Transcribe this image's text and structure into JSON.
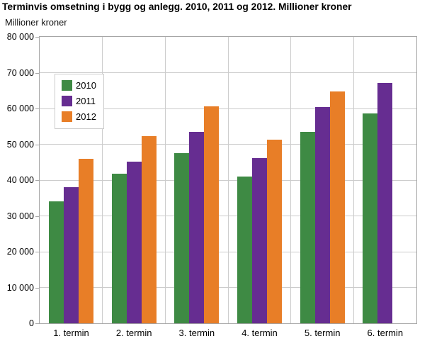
{
  "title": "Terminvis omsetning i bygg og anlegg. 2010, 2011 og 2012. Millioner kroner",
  "y_axis_title": "Millioner kroner",
  "colors": {
    "series_2010": "#3E8A44",
    "series_2011": "#662D91",
    "series_2012": "#E87E27",
    "gridline": "#CCCCCC",
    "plot_border": "#A6A6A6"
  },
  "chart_data": {
    "type": "bar",
    "title": "Terminvis omsetning i bygg og anlegg. 2010, 2011 og 2012. Millioner kroner",
    "ylabel": "Millioner kroner",
    "xlabel": "",
    "categories": [
      "1. termin",
      "2. termin",
      "3. termin",
      "4. termin",
      "5. termin",
      "6. termin"
    ],
    "series": [
      {
        "name": "2010",
        "color": "#3E8A44",
        "values": [
          34000,
          41700,
          47600,
          40900,
          53400,
          58600
        ]
      },
      {
        "name": "2011",
        "color": "#662D91",
        "values": [
          38000,
          45200,
          53500,
          46100,
          60400,
          67100
        ]
      },
      {
        "name": "2012",
        "color": "#E87E27",
        "values": [
          46000,
          52300,
          60500,
          51200,
          64800,
          null
        ]
      }
    ],
    "ylim": [
      0,
      80000
    ],
    "y_ticks": [
      0,
      10000,
      20000,
      30000,
      40000,
      50000,
      60000,
      70000,
      80000
    ],
    "y_tick_labels": [
      "0",
      "10 000",
      "20 000",
      "30 000",
      "40 000",
      "50 000",
      "60 000",
      "70 000",
      "80 000"
    ],
    "grid": true,
    "legend_position": "upper-left-inside"
  }
}
